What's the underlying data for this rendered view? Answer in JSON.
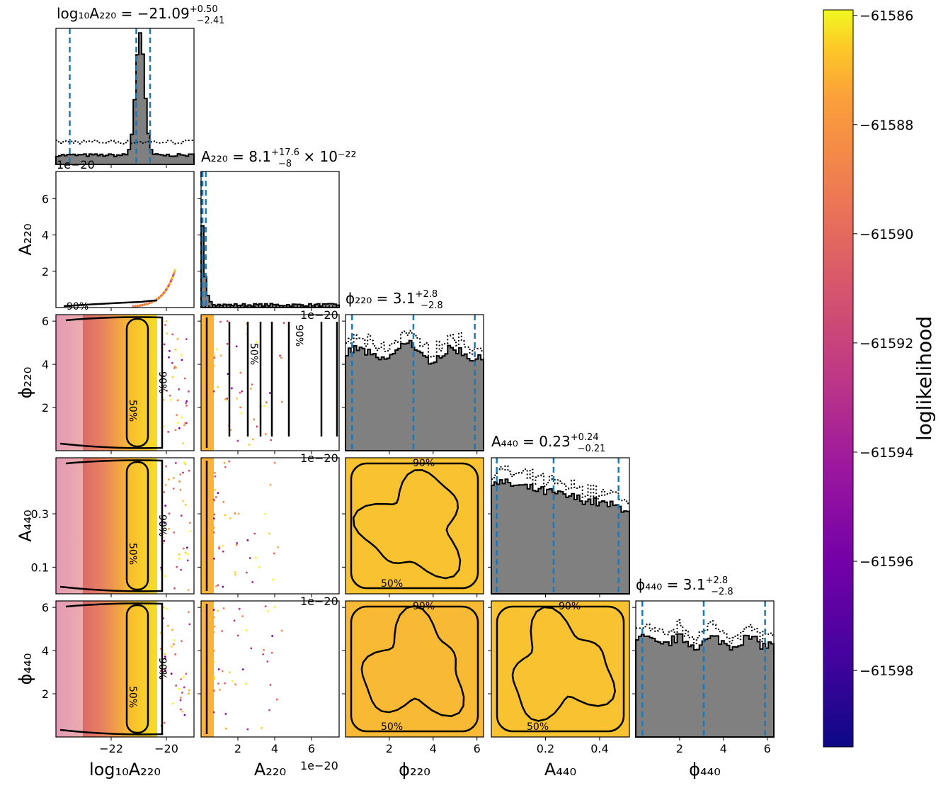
{
  "chart_data": {
    "type": "corner",
    "parameters": [
      "log10_A220",
      "A220",
      "phi220",
      "A440",
      "phi440"
    ],
    "axis_labels": [
      "log₁₀A₂₂₀",
      "A₂₂₀",
      "ϕ₂₂₀",
      "A₄₄₀",
      "ϕ₄₄₀"
    ],
    "ylabels": [
      "A₂₂₀",
      "ϕ₂₂₀",
      "A₄₄₀",
      "ϕ₄₄₀"
    ],
    "titles": [
      {
        "name": "log₁₀A₂₂₀",
        "median": "−21.09",
        "plus": "+0.50",
        "minus": "−2.41",
        "suffix": ""
      },
      {
        "name": "A₂₂₀",
        "median": "8.1",
        "plus": "+17.6",
        "minus": "−8",
        "suffix": " × 10⁻²²"
      },
      {
        "name": "ϕ₂₂₀",
        "median": "3.1",
        "plus": "+2.8",
        "minus": "−2.8",
        "suffix": ""
      },
      {
        "name": "A₄₄₀",
        "median": "0.23",
        "plus": "+0.24",
        "minus": "−0.21",
        "suffix": ""
      },
      {
        "name": "ϕ₄₄₀",
        "median": "3.1",
        "plus": "+2.8",
        "minus": "−2.8",
        "suffix": ""
      }
    ],
    "ranges": [
      [
        -24,
        -19
      ],
      [
        0,
        7.5e-20
      ],
      [
        0,
        6.3
      ],
      [
        0,
        0.51
      ],
      [
        0,
        6.3
      ]
    ],
    "ticks": [
      {
        "values": [
          -22,
          -20
        ],
        "labels": [
          "−22",
          "−20"
        ]
      },
      {
        "values": [
          2e-20,
          4e-20,
          6e-20
        ],
        "labels": [
          "2",
          "4",
          "6"
        ]
      },
      {
        "values": [
          2,
          4,
          6
        ],
        "labels": [
          "2",
          "4",
          "6"
        ]
      },
      {
        "values": [
          0.2,
          0.4
        ],
        "labels": [
          "0.2",
          "0.4"
        ]
      },
      {
        "values": [
          2,
          4,
          6
        ],
        "labels": [
          "2",
          "4",
          "6"
        ]
      }
    ],
    "yticks": [
      null,
      {
        "values": [
          2e-20,
          4e-20,
          6e-20
        ],
        "labels": [
          "2",
          "4",
          "6"
        ]
      },
      {
        "values": [
          2,
          4,
          6
        ],
        "labels": [
          "2",
          "4",
          "6"
        ]
      },
      {
        "values": [
          0.1,
          0.3
        ],
        "labels": [
          "0.1",
          "0.3"
        ]
      },
      {
        "values": [
          2,
          4,
          6
        ],
        "labels": [
          "2",
          "4",
          "6"
        ]
      }
    ],
    "offset_text": "1e−20",
    "quantiles": [
      [
        -23.5,
        -21.09,
        -20.59
      ],
      [
        1e-22,
        8.1e-22,
        2.57e-21
      ],
      [
        0.3,
        3.1,
        5.9
      ],
      [
        0.02,
        0.23,
        0.47
      ],
      [
        0.3,
        3.1,
        5.9
      ]
    ],
    "contour_levels": [
      "50%",
      "90%"
    ],
    "colorbar": {
      "label": "loglikelihood",
      "range": [
        -61599.4,
        -61585.9
      ],
      "ticks": [
        -61586,
        -61588,
        -61590,
        -61592,
        -61594,
        -61596,
        -61598
      ],
      "tick_labels": [
        "−61586",
        "−61588",
        "−61590",
        "−61592",
        "−61594",
        "−61596",
        "−61598"
      ],
      "colormap": "plasma"
    },
    "colors": {
      "histogram": "#808080",
      "quantile_line": "#1f77b4",
      "contour": "#000000",
      "scatter_low": "#cc4778",
      "scatter_high": "#f0f921"
    }
  }
}
